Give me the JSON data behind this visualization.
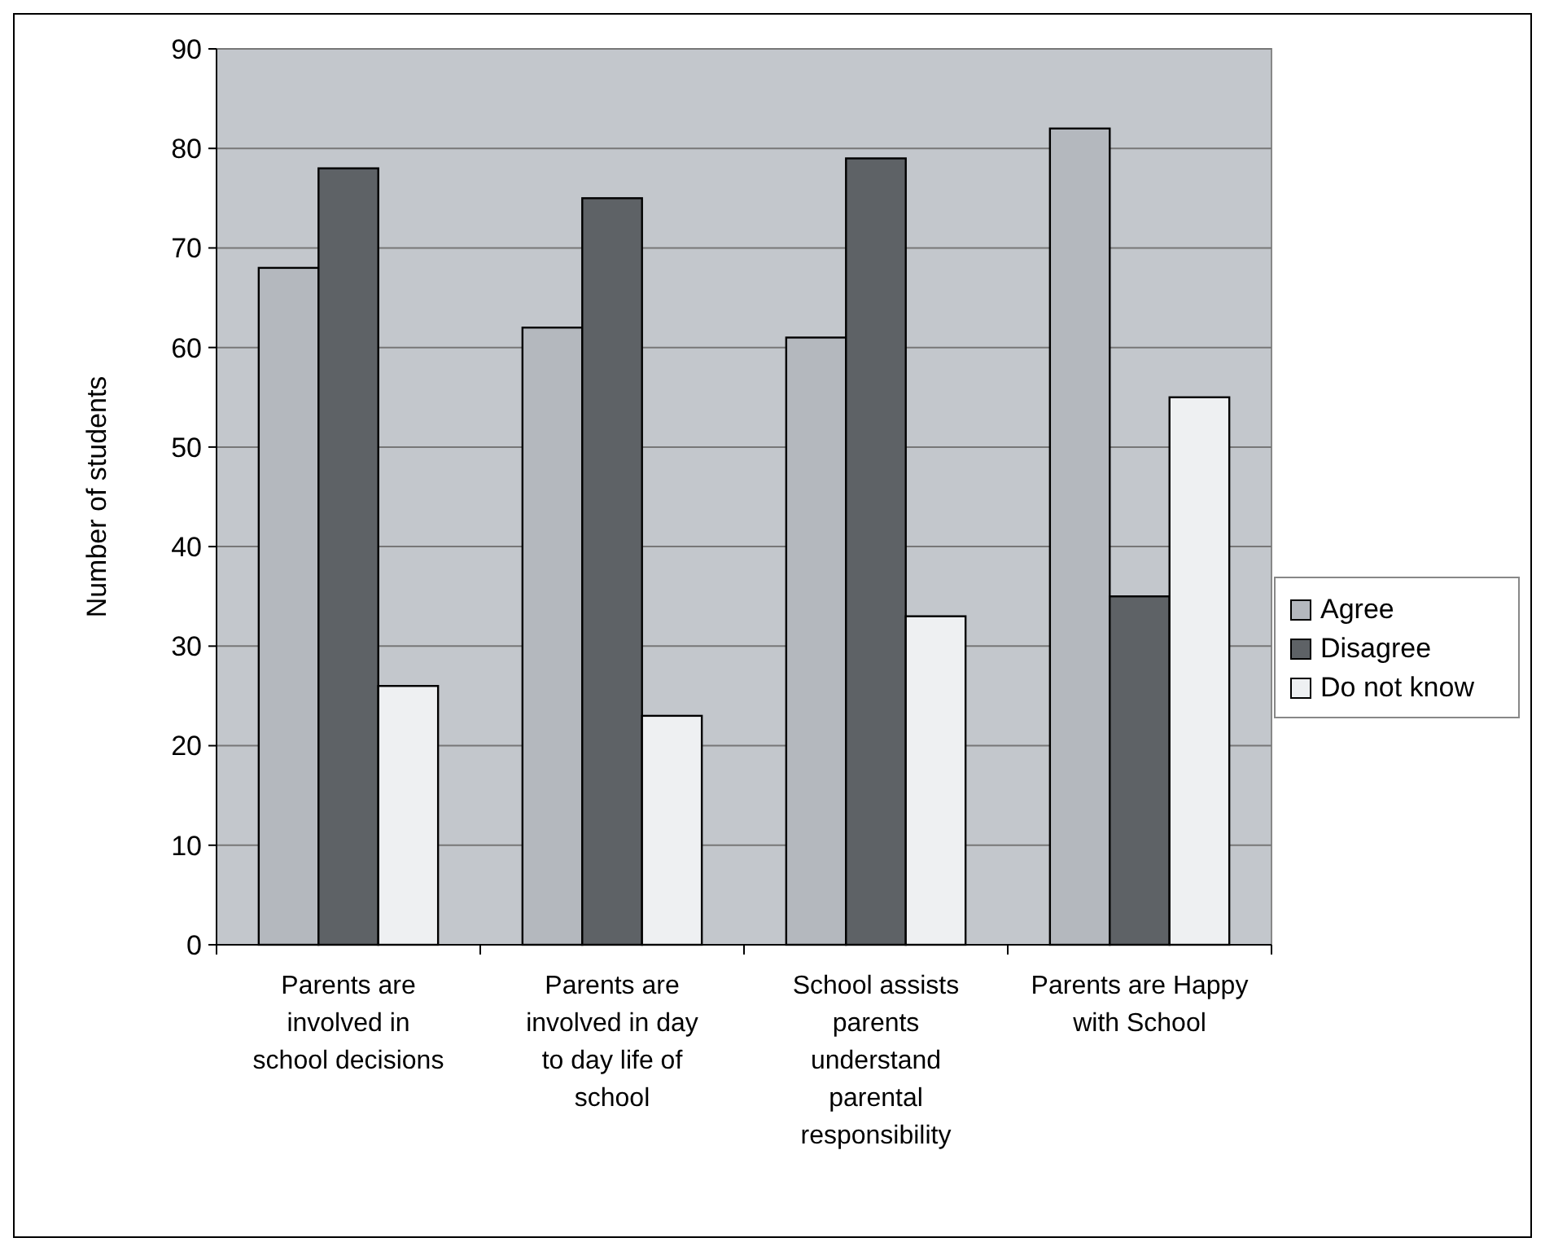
{
  "chart_data": {
    "type": "bar",
    "ylabel": "Number of students",
    "categories": [
      "Parents are involved in school decisions",
      "Parents are involved in day to day life of school",
      "School assists parents understand parental responsibility",
      "Parents are Happy with School"
    ],
    "series": [
      {
        "name": "Agree",
        "color": "#b4b8be",
        "values": [
          68,
          62,
          61,
          82
        ]
      },
      {
        "name": "Disagree",
        "color": "#5e6266",
        "values": [
          78,
          75,
          79,
          35
        ]
      },
      {
        "name": "Do not know",
        "color": "#eef0f2",
        "values": [
          26,
          23,
          33,
          55
        ]
      }
    ],
    "ylim": [
      0,
      90
    ],
    "yticks": [
      0,
      10,
      20,
      30,
      40,
      50,
      60,
      70,
      80,
      90
    ],
    "grid": "y",
    "legend": "right"
  }
}
